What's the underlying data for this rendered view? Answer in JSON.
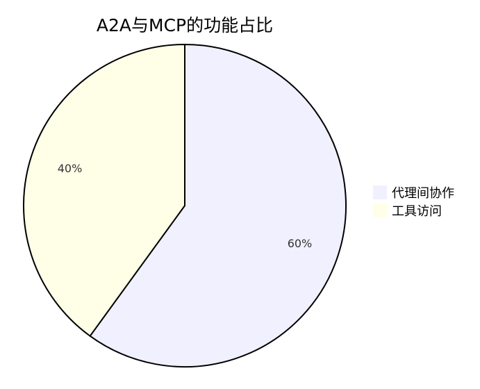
{
  "chart_data": {
    "type": "pie",
    "title": "A2A与MCP的功能占比",
    "slices": [
      {
        "label": "代理间协作",
        "value": 60,
        "display": "60%",
        "color": "#f0f0ff"
      },
      {
        "label": "工具访问",
        "value": 40,
        "display": "40%",
        "color": "#ffffe8"
      }
    ],
    "legend_position": "right",
    "stroke_color": "#000000"
  }
}
